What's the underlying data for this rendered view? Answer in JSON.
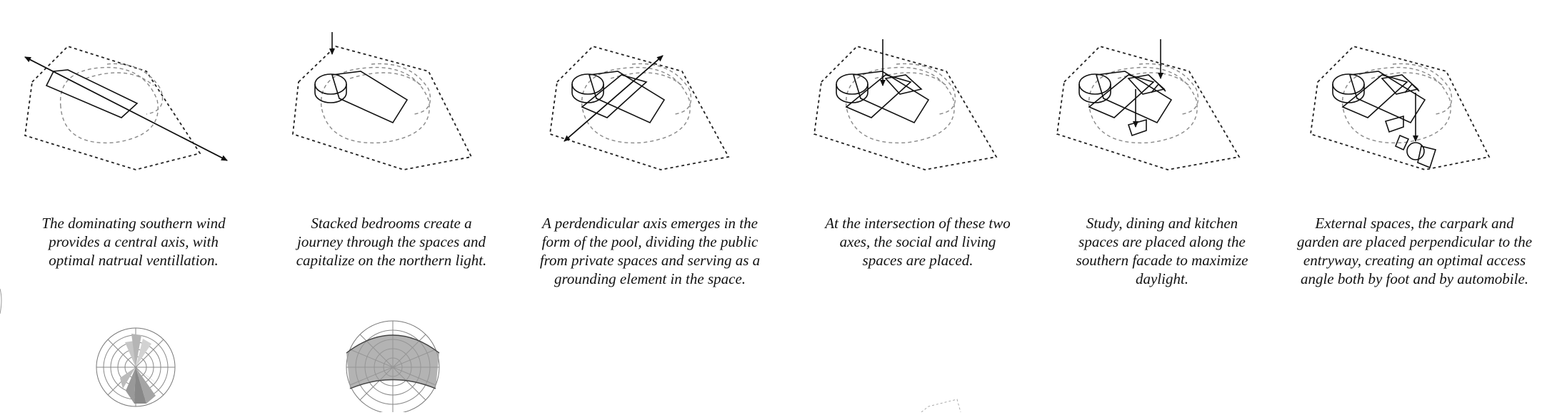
{
  "captions": [
    "The dominating southern wind\nprovides a central axis, with\noptimal natrual ventillation.",
    "Stacked bedrooms create a\njourney through the spaces and\ncapitalize on the northern light.",
    "A perdendicular axis emerges in the\nform of the pool, dividing the public\nfrom private spaces and serving as a\ngrounding element in the space.",
    "At the intersection of these two\naxes, the social and living\nspaces are placed.",
    "Study, dining and kitchen\nspaces are placed along the\nsouthern facade to maximize\ndaylight.",
    "External spaces, the carpark and\ngarden are placed perpendicular to the\nentryway, creating an optimal access\nangle both by foot and by automobile."
  ],
  "diagram_icons": [
    "site-wind-axis-diagram",
    "bedrooms-north-light-diagram",
    "pool-perpendicular-axis-diagram",
    "social-living-intersection-diagram",
    "study-dining-kitchen-diagram",
    "external-spaces-carpark-diagram"
  ],
  "charts": [
    "wind-rose-icon",
    "sun-path-icon"
  ]
}
